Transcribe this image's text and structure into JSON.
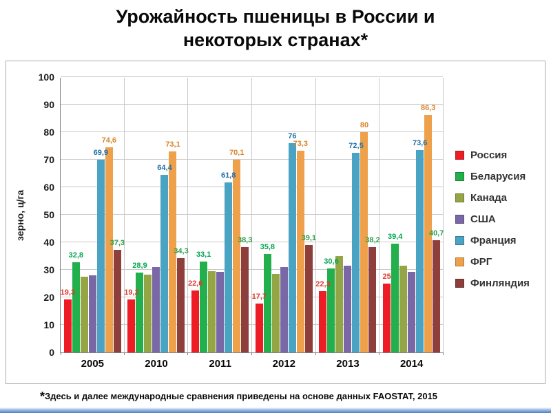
{
  "title": "Урожайность пшеницы в России и некоторых странах*",
  "footnote_marker": "*",
  "footnote": "Здесь и далее международные сравнения приведены на основе данных FAOSTAT, 2015",
  "chart_data": {
    "type": "bar",
    "title": "Урожайность пшеницы в России и некоторых странах",
    "xlabel": "",
    "ylabel": "зерно, ц/га",
    "ylim": [
      0,
      100
    ],
    "ytick_step": 10,
    "grid": true,
    "legend_position": "right",
    "categories": [
      "2005",
      "2010",
      "2011",
      "2012",
      "2013",
      "2014"
    ],
    "series": [
      {
        "name": "Россия",
        "color": "#ee1c25",
        "label_color": "#e0392e",
        "values": [
          19.3,
          19.2,
          22.6,
          17.7,
          22.3,
          25
        ],
        "labels": [
          "19,3",
          "19,2",
          "22,6",
          "17,7",
          "22,3",
          "25"
        ]
      },
      {
        "name": "Беларусия",
        "color": "#21b04b",
        "label_color": "#00a550",
        "values": [
          32.8,
          28.9,
          33.1,
          35.8,
          30.6,
          39.4
        ],
        "labels": [
          "32,8",
          "28,9",
          "33,1",
          "35,8",
          "30,6",
          "39,4"
        ]
      },
      {
        "name": "Канада",
        "color": "#94a545",
        "label_color": null,
        "values": [
          27.5,
          28.2,
          29.5,
          28.5,
          35.0,
          31.5
        ],
        "labels": null
      },
      {
        "name": "США",
        "color": "#7a68a6",
        "label_color": null,
        "values": [
          28.1,
          31.0,
          29.2,
          31.1,
          31.6,
          29.3
        ],
        "labels": null
      },
      {
        "name": "Франция",
        "color": "#4ba3c3",
        "label_color": "#1f6fa8",
        "values": [
          69.9,
          64.4,
          61.8,
          76,
          72.5,
          73.6
        ],
        "labels": [
          "69,9",
          "64,4",
          "61,8",
          "76",
          "72,5",
          "73,6"
        ]
      },
      {
        "name": "ФРГ",
        "color": "#efa04a",
        "label_color": "#d98428",
        "values": [
          74.6,
          73.1,
          70.1,
          73.3,
          80,
          86.3
        ],
        "labels": [
          "74,6",
          "73,1",
          "70,1",
          "73,3",
          "80",
          "86,3"
        ]
      },
      {
        "name": "Финляндия",
        "color": "#8e3f3b",
        "label_color": "#2e9e4a",
        "values": [
          37.3,
          34.3,
          38.3,
          39.1,
          38.2,
          40.7
        ],
        "labels": [
          "37,3",
          "34,3",
          "38,3",
          "39,1",
          "38,2",
          "40,7"
        ]
      }
    ]
  }
}
